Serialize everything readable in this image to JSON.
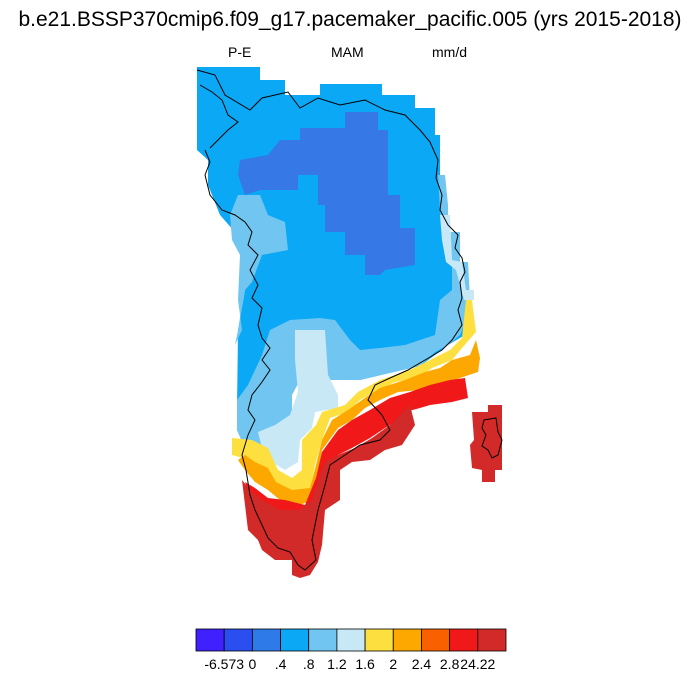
{
  "title": "b.e21.BSSP370cmip6.f09_g17.pacemaker_pacific.005 (yrs 2015-2018)",
  "subtitle": {
    "left": "P-E",
    "center": "MAM",
    "right": "mm/d"
  },
  "colorbar": {
    "colors": [
      "#4020ff",
      "#2b4ef0",
      "#2e7ae8",
      "#0aa8f5",
      "#70c6f0",
      "#c8e8f6",
      "#fde040",
      "#fca800",
      "#f96000",
      "#f01818",
      "#d22a28"
    ],
    "labels": [
      "-6.573",
      "0",
      ".4",
      ".8",
      "1.2",
      "1.6",
      "2",
      "2.4",
      "2.8",
      "24.22"
    ]
  },
  "map": {
    "region": "Greenland",
    "colors": {
      "dark_blue": "#3578e6",
      "blue": "#0aa8f5",
      "light_blue": "#70c6f0",
      "pale_blue": "#c8e8f6",
      "yellow": "#fde040",
      "orange": "#fca800",
      "dark_orange": "#f96000",
      "red": "#f01818",
      "dark_red": "#d22a28",
      "coastline": "#000000"
    }
  }
}
